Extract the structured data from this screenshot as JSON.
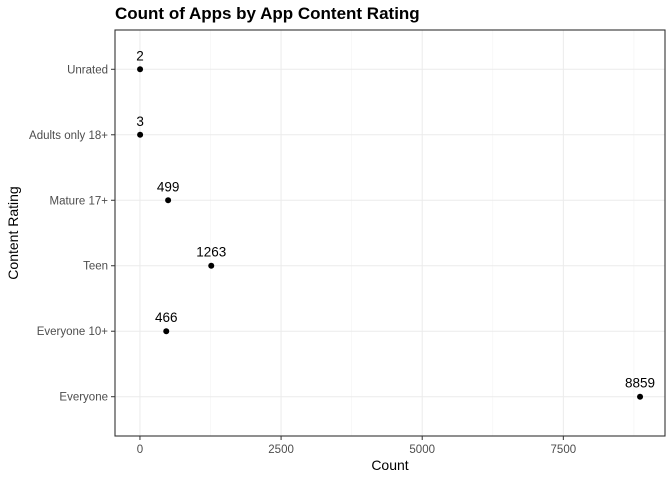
{
  "chart_data": {
    "type": "scatter",
    "title": "Count of Apps by App Content Rating",
    "xlabel": "Count",
    "ylabel": "Content Rating",
    "xlim": [
      -442,
      9301
    ],
    "x_ticks": [
      0,
      2500,
      5000,
      7500
    ],
    "x_tick_labels": [
      "0",
      "2500",
      "5000",
      "7500"
    ],
    "categories": [
      "Everyone",
      "Everyone 10+",
      "Teen",
      "Mature 17+",
      "Adults only 18+",
      "Unrated"
    ],
    "values": [
      8859,
      466,
      1263,
      499,
      3,
      2
    ],
    "data_labels": [
      "8859",
      "466",
      "1263",
      "499",
      "3",
      "2"
    ],
    "grid": true,
    "legend": "none",
    "colors": {
      "point": "#000000",
      "grid": "#ebebeb",
      "border": "#333333",
      "background": "#ffffff"
    }
  }
}
